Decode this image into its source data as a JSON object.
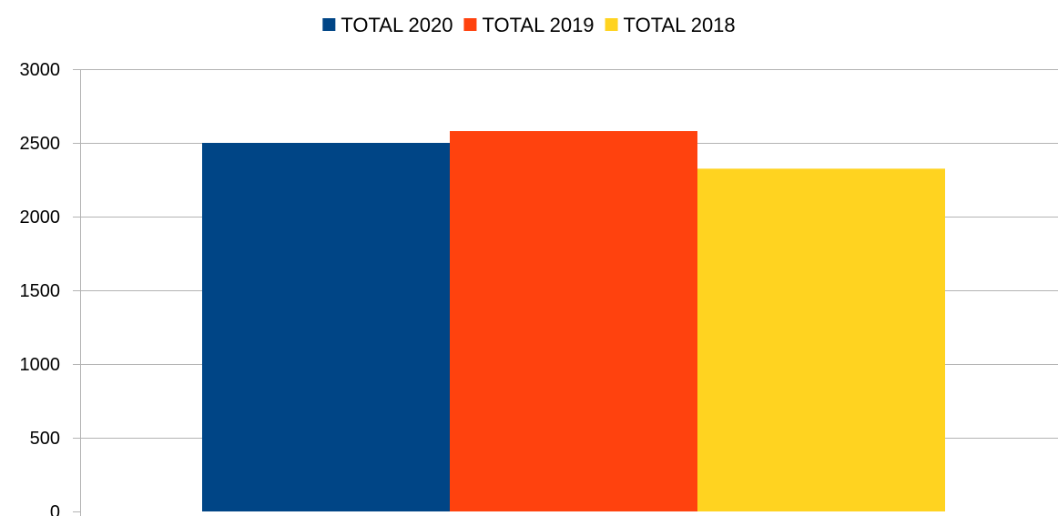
{
  "chart_data": {
    "type": "bar",
    "categories": [
      ""
    ],
    "series": [
      {
        "name": "TOTAL 2020",
        "values": [
          2500
        ],
        "color": "#004586"
      },
      {
        "name": "TOTAL 2019",
        "values": [
          2580
        ],
        "color": "#ff420e"
      },
      {
        "name": "TOTAL 2018",
        "values": [
          2325
        ],
        "color": "#ffd320"
      }
    ],
    "title": "",
    "xlabel": "",
    "ylabel": "",
    "ylim": [
      0,
      3000
    ],
    "yticks": [
      "0",
      "500",
      "1000",
      "1500",
      "2000",
      "2500",
      "3000"
    ],
    "grid": true,
    "legend_position": "top"
  }
}
